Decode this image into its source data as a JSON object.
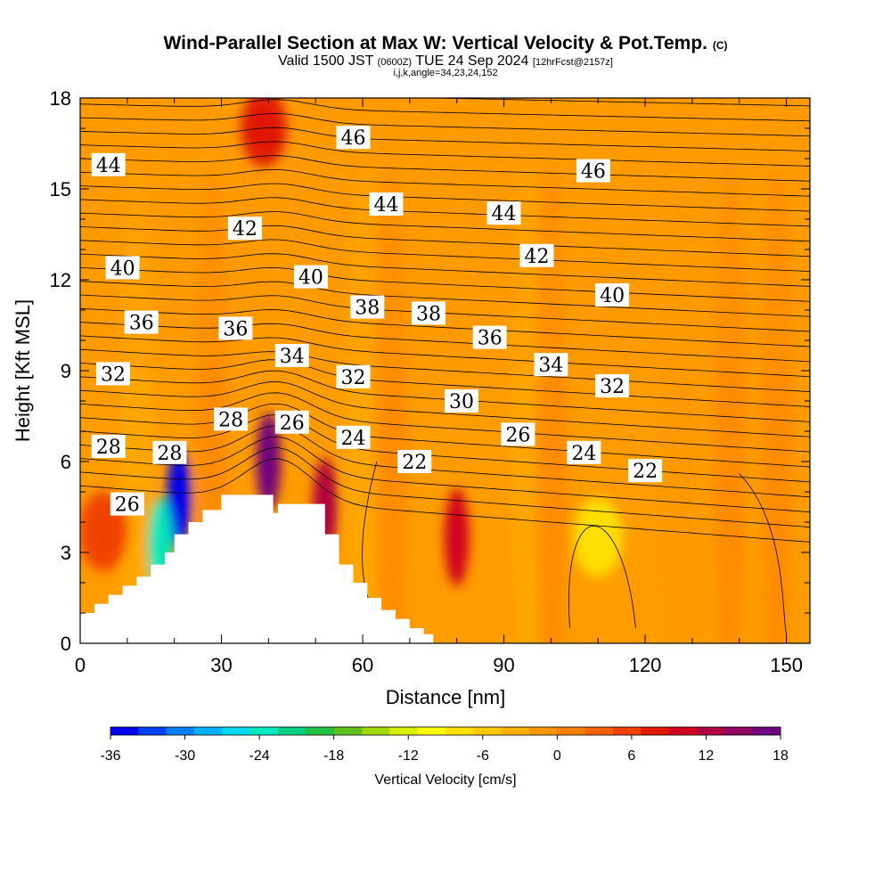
{
  "header": {
    "title_main": "Wind-Parallel Section at Max W: Vertical Velocity & Pot.Temp.",
    "title_mark": "(C)",
    "valid_a": "Valid 1500 JST",
    "valid_b": "(0600Z)",
    "valid_c": "TUE 24 Sep 2024",
    "valid_d": "[12hrFcst@2157z]",
    "subline": "i,j,k,angle=34,23,24,152"
  },
  "chart_data": {
    "type": "heatmap",
    "xlabel": "Distance [nm]",
    "ylabel": "Height [Kft MSL]",
    "xlim": [
      0,
      155
    ],
    "ylim": [
      0,
      18
    ],
    "xticks": [
      0,
      30,
      60,
      90,
      120,
      150
    ],
    "yticks": [
      0,
      3,
      6,
      9,
      12,
      15,
      18
    ],
    "colorbar": {
      "label": "Vertical Velocity [cm/s]",
      "ticks": [
        -36,
        -30,
        -24,
        -18,
        -12,
        -6,
        0,
        6,
        12,
        18
      ],
      "colors": [
        "#0000f0",
        "#0040f8",
        "#0080ff",
        "#00b0ff",
        "#00d8f0",
        "#00e8c0",
        "#00d080",
        "#20c040",
        "#60c020",
        "#a0d800",
        "#d8f000",
        "#ffff00",
        "#ffe000",
        "#ffc800",
        "#ffb000",
        "#ff9800",
        "#ff8000",
        "#ff6000",
        "#f04000",
        "#e01800",
        "#d00020",
        "#b00040",
        "#900060",
        "#700080"
      ]
    },
    "terrain_profile": {
      "distance": [
        0,
        3,
        6,
        9,
        12,
        15,
        18,
        20,
        23,
        26,
        30,
        35,
        38,
        41,
        42,
        44,
        47,
        50,
        52,
        55,
        58,
        61,
        64,
        67,
        70,
        73,
        75
      ],
      "height": [
        1.0,
        1.3,
        1.6,
        1.9,
        2.2,
        2.6,
        3.0,
        3.6,
        4.0,
        4.4,
        4.9,
        4.9,
        4.9,
        4.3,
        4.6,
        4.6,
        4.6,
        4.6,
        3.6,
        2.6,
        2.0,
        1.5,
        1.1,
        0.8,
        0.5,
        0.3,
        0.3
      ]
    },
    "vertical_velocity_features": [
      {
        "distance": 21,
        "height": 4.8,
        "value": -36
      },
      {
        "distance": 17,
        "height": 3.2,
        "value": -24
      },
      {
        "distance": 40,
        "height": 6.0,
        "value": 18
      },
      {
        "distance": 52,
        "height": 4.5,
        "value": 12
      },
      {
        "distance": 80,
        "height": 3.5,
        "value": 10
      },
      {
        "distance": 110,
        "height": 3.5,
        "value": -8
      },
      {
        "distance": 5,
        "height": 3.7,
        "value": 6
      },
      {
        "distance": 39,
        "height": 17.0,
        "value": 8
      }
    ],
    "contour_labels": [
      {
        "text": "46",
        "distance": 58,
        "height": 16.7
      },
      {
        "text": "46",
        "distance": 109,
        "height": 15.6
      },
      {
        "text": "44",
        "distance": 6,
        "height": 15.8
      },
      {
        "text": "44",
        "distance": 65,
        "height": 14.5
      },
      {
        "text": "44",
        "distance": 90,
        "height": 14.2
      },
      {
        "text": "42",
        "distance": 35,
        "height": 13.7
      },
      {
        "text": "42",
        "distance": 97,
        "height": 12.8
      },
      {
        "text": "40",
        "distance": 9,
        "height": 12.4
      },
      {
        "text": "40",
        "distance": 49,
        "height": 12.1
      },
      {
        "text": "40",
        "distance": 113,
        "height": 11.5
      },
      {
        "text": "38",
        "distance": 61,
        "height": 11.1
      },
      {
        "text": "38",
        "distance": 74,
        "height": 10.9
      },
      {
        "text": "36",
        "distance": 13,
        "height": 10.6
      },
      {
        "text": "36",
        "distance": 33,
        "height": 10.4
      },
      {
        "text": "36",
        "distance": 87,
        "height": 10.1
      },
      {
        "text": "34",
        "distance": 45,
        "height": 9.5
      },
      {
        "text": "34",
        "distance": 100,
        "height": 9.2
      },
      {
        "text": "32",
        "distance": 7,
        "height": 8.9
      },
      {
        "text": "32",
        "distance": 58,
        "height": 8.8
      },
      {
        "text": "32",
        "distance": 113,
        "height": 8.5
      },
      {
        "text": "30",
        "distance": 81,
        "height": 8.0
      },
      {
        "text": "28",
        "distance": 32,
        "height": 7.4
      },
      {
        "text": "28",
        "distance": 6,
        "height": 6.5
      },
      {
        "text": "28",
        "distance": 19,
        "height": 6.3
      },
      {
        "text": "26",
        "distance": 45,
        "height": 7.3
      },
      {
        "text": "26",
        "distance": 93,
        "height": 6.9
      },
      {
        "text": "24",
        "distance": 58,
        "height": 6.8
      },
      {
        "text": "24",
        "distance": 107,
        "height": 6.3
      },
      {
        "text": "22",
        "distance": 71,
        "height": 6.0
      },
      {
        "text": "22",
        "distance": 120,
        "height": 5.7
      },
      {
        "text": "26",
        "distance": 10,
        "height": 4.6
      }
    ]
  }
}
